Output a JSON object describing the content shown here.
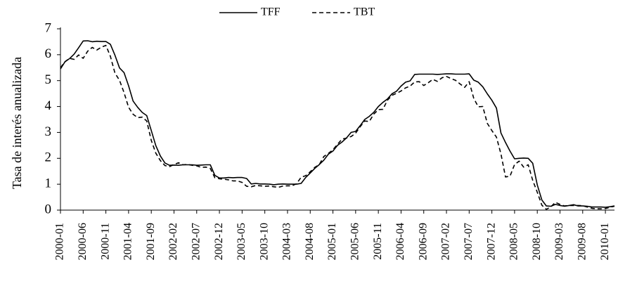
{
  "chart_data": {
    "type": "line",
    "title": "",
    "xlabel": "",
    "ylabel": "Tasa de interés anualizada",
    "ylim": [
      0,
      7
    ],
    "yticks": [
      0,
      1,
      2,
      3,
      4,
      5,
      6,
      7
    ],
    "grid": false,
    "legend_position": "top-center",
    "x_tick_labels": [
      "2000-01",
      "2000-06",
      "2000-11",
      "2001-04",
      "2001-09",
      "2002-02",
      "2002-07",
      "2002-12",
      "2003-05",
      "2003-10",
      "2004-03",
      "2004-08",
      "2005-01",
      "2005-06",
      "2005-11",
      "2006-04",
      "2006-09",
      "2007-02",
      "2007-07",
      "2007-12",
      "2008-05",
      "2008-10",
      "2009-03",
      "2009-08",
      "2010-01"
    ],
    "x_start": "2000-01",
    "x_end": "2010-03",
    "series": [
      {
        "name": "TFF",
        "style": "solid",
        "color": "#000000",
        "points": [
          [
            "2000-01",
            5.45
          ],
          [
            "2000-02",
            5.73
          ],
          [
            "2000-03",
            5.85
          ],
          [
            "2000-04",
            6.02
          ],
          [
            "2000-05",
            6.27
          ],
          [
            "2000-06",
            6.53
          ],
          [
            "2000-07",
            6.54
          ],
          [
            "2000-08",
            6.5
          ],
          [
            "2000-09",
            6.52
          ],
          [
            "2000-10",
            6.51
          ],
          [
            "2000-11",
            6.51
          ],
          [
            "2000-12",
            6.4
          ],
          [
            "2001-01",
            5.98
          ],
          [
            "2001-02",
            5.49
          ],
          [
            "2001-03",
            5.31
          ],
          [
            "2001-04",
            4.8
          ],
          [
            "2001-05",
            4.21
          ],
          [
            "2001-06",
            3.97
          ],
          [
            "2001-07",
            3.77
          ],
          [
            "2001-08",
            3.65
          ],
          [
            "2001-09",
            3.07
          ],
          [
            "2001-10",
            2.49
          ],
          [
            "2001-11",
            2.09
          ],
          [
            "2001-12",
            1.82
          ],
          [
            "2002-01",
            1.73
          ],
          [
            "2002-02",
            1.74
          ],
          [
            "2002-03",
            1.73
          ],
          [
            "2002-04",
            1.75
          ],
          [
            "2002-05",
            1.75
          ],
          [
            "2002-06",
            1.75
          ],
          [
            "2002-07",
            1.73
          ],
          [
            "2002-08",
            1.74
          ],
          [
            "2002-09",
            1.75
          ],
          [
            "2002-10",
            1.75
          ],
          [
            "2002-11",
            1.34
          ],
          [
            "2002-12",
            1.24
          ],
          [
            "2003-01",
            1.24
          ],
          [
            "2003-02",
            1.26
          ],
          [
            "2003-03",
            1.25
          ],
          [
            "2003-04",
            1.26
          ],
          [
            "2003-05",
            1.26
          ],
          [
            "2003-06",
            1.22
          ],
          [
            "2003-07",
            1.01
          ],
          [
            "2003-08",
            1.03
          ],
          [
            "2003-09",
            1.01
          ],
          [
            "2003-10",
            1.01
          ],
          [
            "2003-11",
            1.0
          ],
          [
            "2003-12",
            0.98
          ],
          [
            "2004-01",
            1.0
          ],
          [
            "2004-02",
            1.01
          ],
          [
            "2004-03",
            1.0
          ],
          [
            "2004-04",
            1.0
          ],
          [
            "2004-05",
            1.0
          ],
          [
            "2004-06",
            1.03
          ],
          [
            "2004-07",
            1.26
          ],
          [
            "2004-08",
            1.43
          ],
          [
            "2004-09",
            1.61
          ],
          [
            "2004-10",
            1.76
          ],
          [
            "2004-11",
            1.93
          ],
          [
            "2004-12",
            2.16
          ],
          [
            "2005-01",
            2.28
          ],
          [
            "2005-02",
            2.5
          ],
          [
            "2005-03",
            2.63
          ],
          [
            "2005-04",
            2.79
          ],
          [
            "2005-05",
            3.0
          ],
          [
            "2005-06",
            3.04
          ],
          [
            "2005-07",
            3.26
          ],
          [
            "2005-08",
            3.5
          ],
          [
            "2005-09",
            3.62
          ],
          [
            "2005-10",
            3.78
          ],
          [
            "2005-11",
            4.0
          ],
          [
            "2005-12",
            4.16
          ],
          [
            "2006-01",
            4.29
          ],
          [
            "2006-02",
            4.49
          ],
          [
            "2006-03",
            4.59
          ],
          [
            "2006-04",
            4.79
          ],
          [
            "2006-05",
            4.94
          ],
          [
            "2006-06",
            4.99
          ],
          [
            "2006-07",
            5.24
          ],
          [
            "2006-08",
            5.25
          ],
          [
            "2006-09",
            5.25
          ],
          [
            "2006-10",
            5.25
          ],
          [
            "2006-11",
            5.25
          ],
          [
            "2006-12",
            5.24
          ],
          [
            "2007-01",
            5.25
          ],
          [
            "2007-02",
            5.26
          ],
          [
            "2007-03",
            5.26
          ],
          [
            "2007-04",
            5.25
          ],
          [
            "2007-05",
            5.25
          ],
          [
            "2007-06",
            5.25
          ],
          [
            "2007-07",
            5.26
          ],
          [
            "2007-08",
            5.02
          ],
          [
            "2007-09",
            4.94
          ],
          [
            "2007-10",
            4.76
          ],
          [
            "2007-11",
            4.49
          ],
          [
            "2007-12",
            4.24
          ],
          [
            "2008-01",
            3.94
          ],
          [
            "2008-02",
            2.98
          ],
          [
            "2008-03",
            2.61
          ],
          [
            "2008-04",
            2.28
          ],
          [
            "2008-05",
            1.98
          ],
          [
            "2008-06",
            2.0
          ],
          [
            "2008-07",
            2.01
          ],
          [
            "2008-08",
            2.0
          ],
          [
            "2008-09",
            1.81
          ],
          [
            "2008-10",
            0.97
          ],
          [
            "2008-11",
            0.39
          ],
          [
            "2008-12",
            0.16
          ],
          [
            "2009-01",
            0.15
          ],
          [
            "2009-02",
            0.22
          ],
          [
            "2009-03",
            0.18
          ],
          [
            "2009-04",
            0.15
          ],
          [
            "2009-05",
            0.18
          ],
          [
            "2009-06",
            0.21
          ],
          [
            "2009-07",
            0.16
          ],
          [
            "2009-08",
            0.16
          ],
          [
            "2009-09",
            0.15
          ],
          [
            "2009-10",
            0.12
          ],
          [
            "2009-11",
            0.12
          ],
          [
            "2009-12",
            0.12
          ],
          [
            "2010-01",
            0.11
          ],
          [
            "2010-02",
            0.13
          ],
          [
            "2010-03",
            0.16
          ]
        ]
      },
      {
        "name": "TBT",
        "style": "dashed",
        "color": "#000000",
        "points": [
          [
            "2000-01",
            5.5
          ],
          [
            "2000-02",
            5.73
          ],
          [
            "2000-03",
            5.86
          ],
          [
            "2000-04",
            5.82
          ],
          [
            "2000-05",
            5.99
          ],
          [
            "2000-06",
            5.86
          ],
          [
            "2000-07",
            6.14
          ],
          [
            "2000-08",
            6.28
          ],
          [
            "2000-09",
            6.18
          ],
          [
            "2000-10",
            6.29
          ],
          [
            "2000-11",
            6.36
          ],
          [
            "2000-12",
            5.94
          ],
          [
            "2001-01",
            5.29
          ],
          [
            "2001-02",
            5.01
          ],
          [
            "2001-03",
            4.54
          ],
          [
            "2001-04",
            3.97
          ],
          [
            "2001-05",
            3.7
          ],
          [
            "2001-06",
            3.57
          ],
          [
            "2001-07",
            3.59
          ],
          [
            "2001-08",
            3.44
          ],
          [
            "2001-09",
            2.69
          ],
          [
            "2001-10",
            2.2
          ],
          [
            "2001-11",
            1.91
          ],
          [
            "2001-12",
            1.72
          ],
          [
            "2002-01",
            1.68
          ],
          [
            "2002-02",
            1.76
          ],
          [
            "2002-03",
            1.83
          ],
          [
            "2002-04",
            1.75
          ],
          [
            "2002-05",
            1.76
          ],
          [
            "2002-06",
            1.73
          ],
          [
            "2002-07",
            1.71
          ],
          [
            "2002-08",
            1.65
          ],
          [
            "2002-09",
            1.66
          ],
          [
            "2002-10",
            1.61
          ],
          [
            "2002-11",
            1.25
          ],
          [
            "2002-12",
            1.21
          ],
          [
            "2003-01",
            1.19
          ],
          [
            "2003-02",
            1.17
          ],
          [
            "2003-03",
            1.13
          ],
          [
            "2003-04",
            1.13
          ],
          [
            "2003-05",
            1.07
          ],
          [
            "2003-06",
            0.92
          ],
          [
            "2003-07",
            0.9
          ],
          [
            "2003-08",
            0.95
          ],
          [
            "2003-09",
            0.94
          ],
          [
            "2003-10",
            0.92
          ],
          [
            "2003-11",
            0.93
          ],
          [
            "2003-12",
            0.9
          ],
          [
            "2004-01",
            0.88
          ],
          [
            "2004-02",
            0.93
          ],
          [
            "2004-03",
            0.94
          ],
          [
            "2004-04",
            0.94
          ],
          [
            "2004-05",
            1.02
          ],
          [
            "2004-06",
            1.27
          ],
          [
            "2004-07",
            1.33
          ],
          [
            "2004-08",
            1.48
          ],
          [
            "2004-09",
            1.65
          ],
          [
            "2004-10",
            1.76
          ],
          [
            "2004-11",
            2.07
          ],
          [
            "2004-12",
            2.19
          ],
          [
            "2005-01",
            2.33
          ],
          [
            "2005-02",
            2.54
          ],
          [
            "2005-03",
            2.74
          ],
          [
            "2005-04",
            2.78
          ],
          [
            "2005-05",
            2.84
          ],
          [
            "2005-06",
            2.97
          ],
          [
            "2005-07",
            3.22
          ],
          [
            "2005-08",
            3.44
          ],
          [
            "2005-09",
            3.42
          ],
          [
            "2005-10",
            3.71
          ],
          [
            "2005-11",
            3.88
          ],
          [
            "2005-12",
            3.89
          ],
          [
            "2006-01",
            4.24
          ],
          [
            "2006-02",
            4.43
          ],
          [
            "2006-03",
            4.51
          ],
          [
            "2006-04",
            4.6
          ],
          [
            "2006-05",
            4.72
          ],
          [
            "2006-06",
            4.79
          ],
          [
            "2006-07",
            4.95
          ],
          [
            "2006-08",
            4.96
          ],
          [
            "2006-09",
            4.81
          ],
          [
            "2006-10",
            4.92
          ],
          [
            "2006-11",
            5.05
          ],
          [
            "2006-12",
            4.97
          ],
          [
            "2007-01",
            5.11
          ],
          [
            "2007-02",
            5.16
          ],
          [
            "2007-03",
            5.08
          ],
          [
            "2007-04",
            5.01
          ],
          [
            "2007-05",
            4.87
          ],
          [
            "2007-06",
            4.74
          ],
          [
            "2007-07",
            4.96
          ],
          [
            "2007-08",
            4.32
          ],
          [
            "2007-09",
            3.99
          ],
          [
            "2007-10",
            4.0
          ],
          [
            "2007-11",
            3.35
          ],
          [
            "2007-12",
            3.07
          ],
          [
            "2008-01",
            2.82
          ],
          [
            "2008-02",
            2.17
          ],
          [
            "2008-03",
            1.28
          ],
          [
            "2008-04",
            1.31
          ],
          [
            "2008-05",
            1.76
          ],
          [
            "2008-06",
            1.89
          ],
          [
            "2008-07",
            1.66
          ],
          [
            "2008-08",
            1.75
          ],
          [
            "2008-09",
            1.15
          ],
          [
            "2008-10",
            0.69
          ],
          [
            "2008-11",
            0.19
          ],
          [
            "2008-12",
            0.03
          ],
          [
            "2009-01",
            0.13
          ],
          [
            "2009-02",
            0.3
          ],
          [
            "2009-03",
            0.22
          ],
          [
            "2009-04",
            0.16
          ],
          [
            "2009-05",
            0.18
          ],
          [
            "2009-06",
            0.18
          ],
          [
            "2009-07",
            0.18
          ],
          [
            "2009-08",
            0.17
          ],
          [
            "2009-09",
            0.12
          ],
          [
            "2009-10",
            0.07
          ],
          [
            "2009-11",
            0.05
          ],
          [
            "2009-12",
            0.05
          ],
          [
            "2010-01",
            0.06
          ],
          [
            "2010-02",
            0.11
          ],
          [
            "2010-03",
            0.15
          ]
        ]
      }
    ]
  }
}
